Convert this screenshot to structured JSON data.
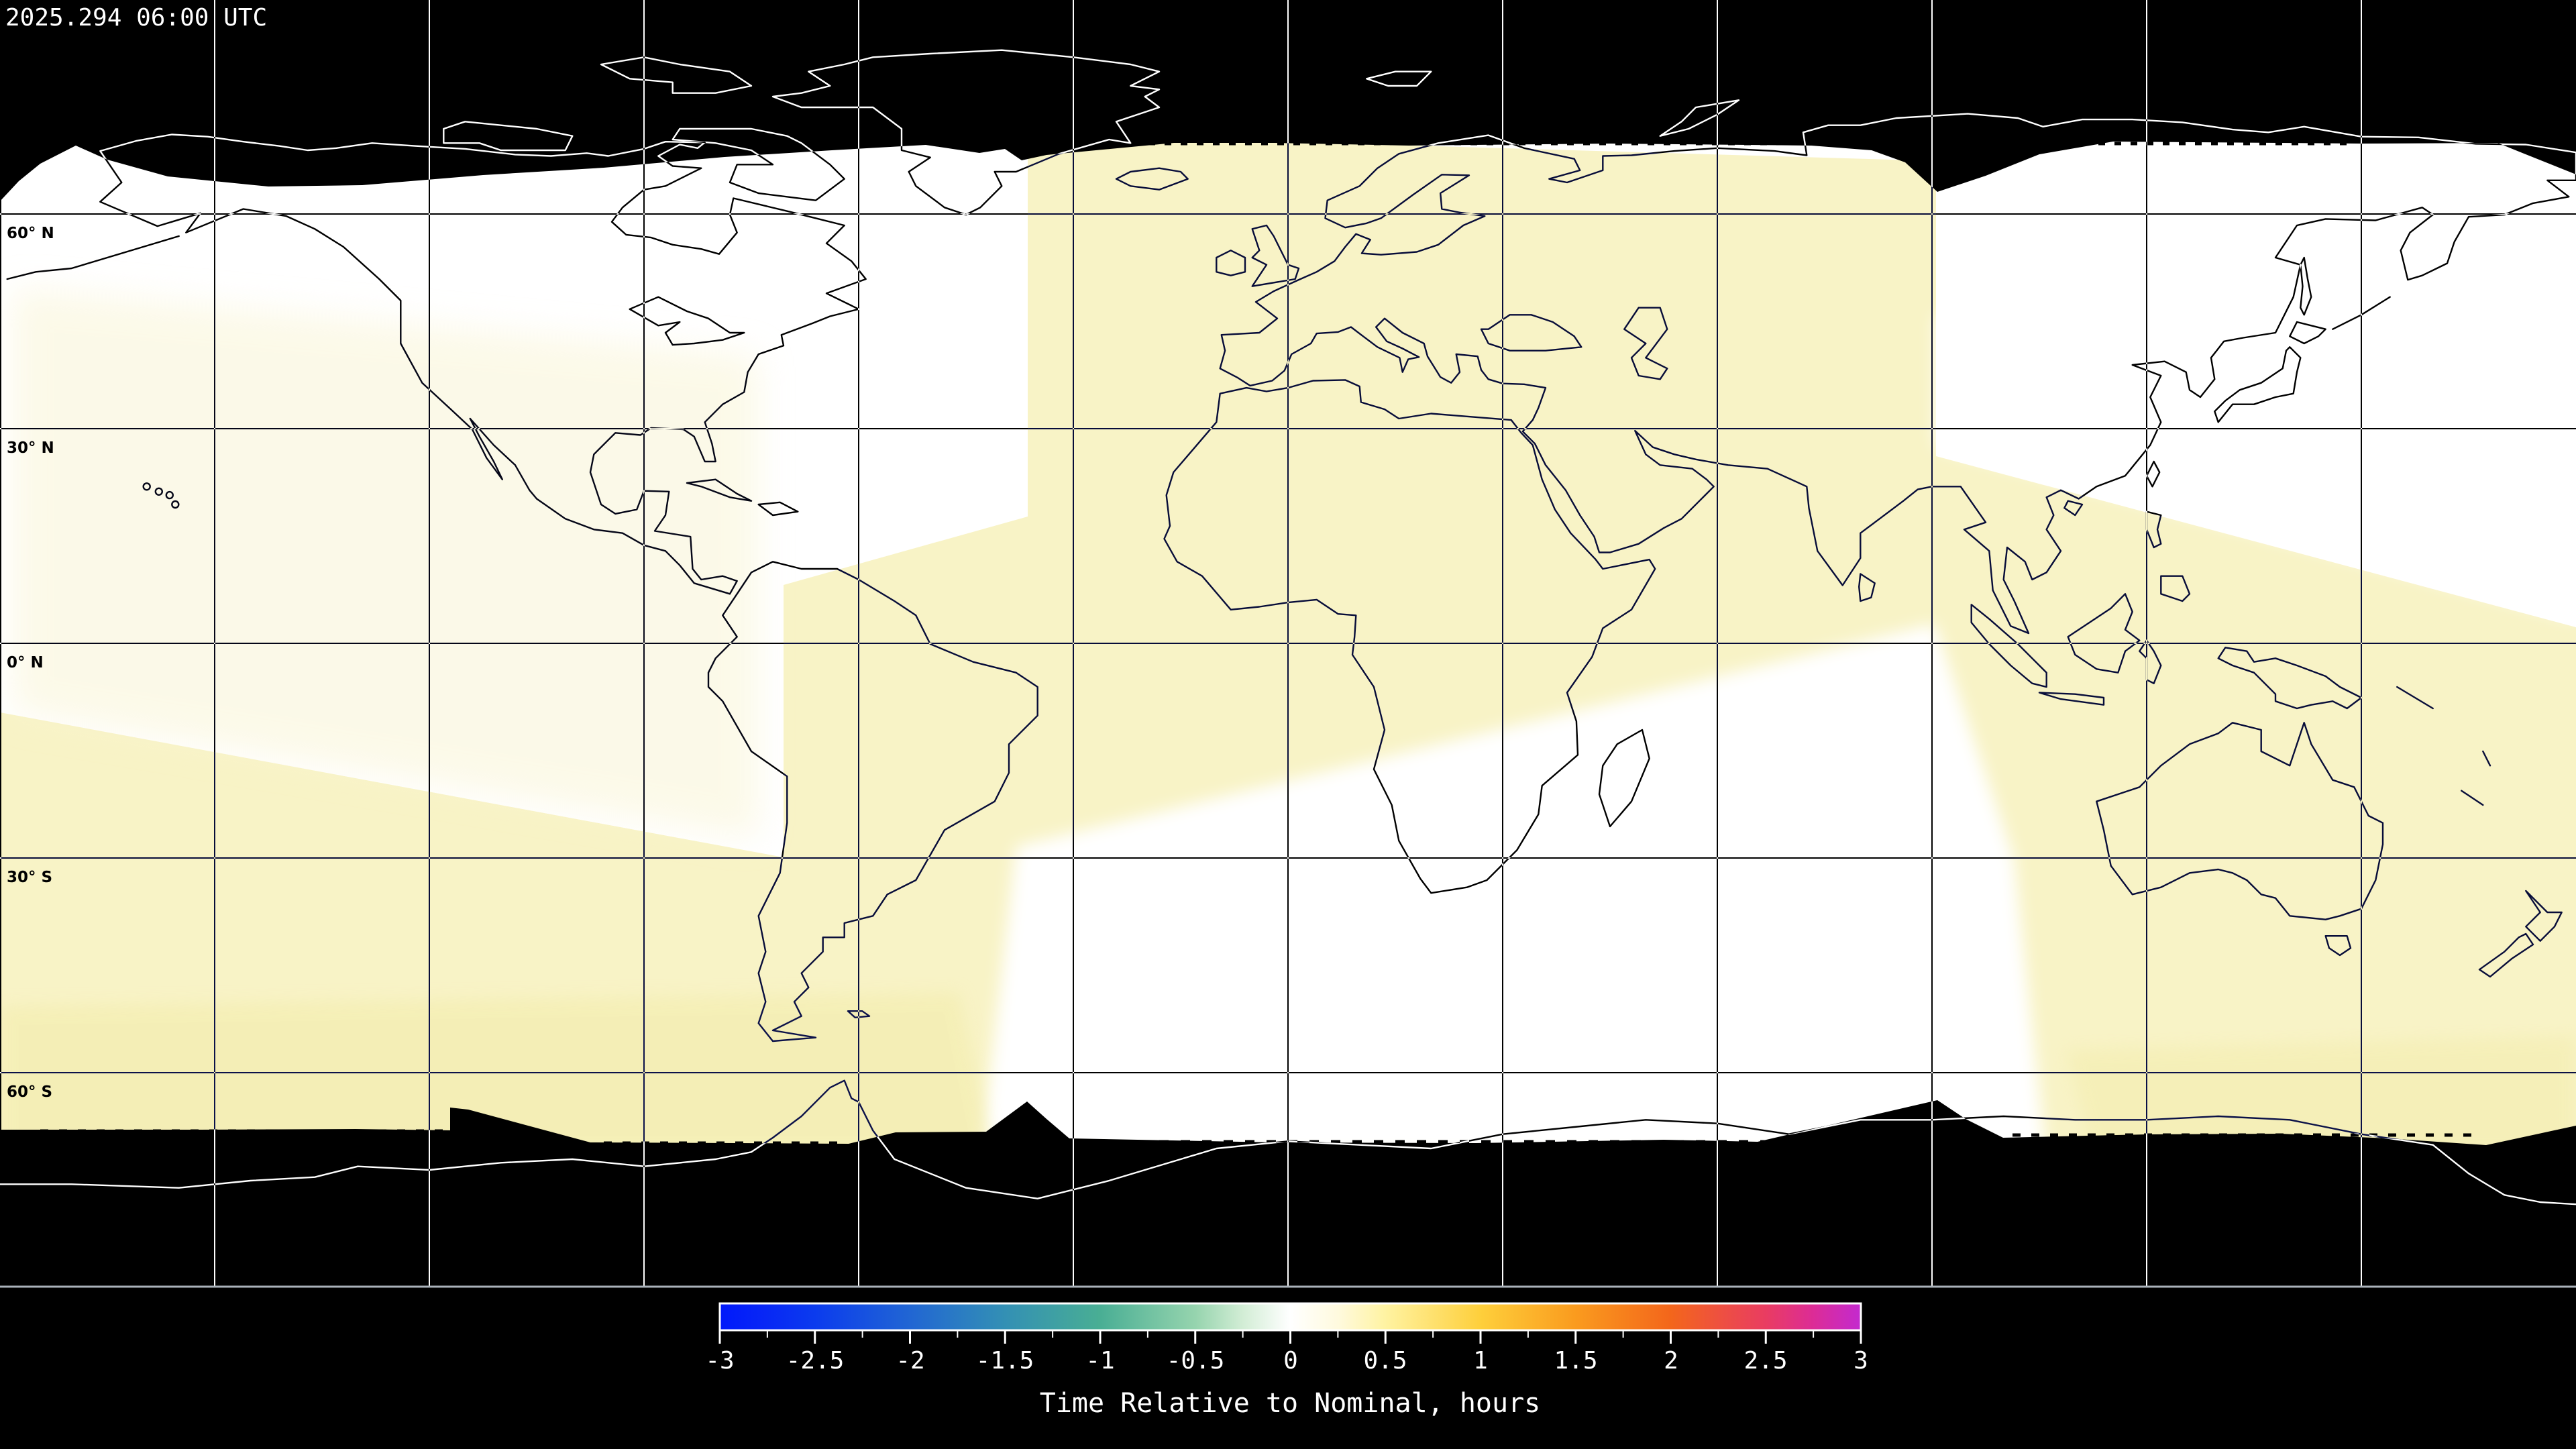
{
  "header": {
    "timestamp": "2025.294 06:00 UTC"
  },
  "map": {
    "lat_labels": [
      "60° N",
      "30° N",
      "0° N",
      "30° S",
      "60° S"
    ]
  },
  "colorbar": {
    "title": "Time Relative to Nominal, hours",
    "ticks": [
      "-3",
      "-2.5",
      "-2",
      "-1.5",
      "-1",
      "-0.5",
      "0",
      "0.5",
      "1",
      "1.5",
      "2",
      "2.5",
      "3"
    ]
  },
  "chart_data": {
    "type": "heatmap",
    "subtype": "global-satellite-overpass-time-map",
    "projection": "equirectangular",
    "title": "Time Relative to Nominal, hours",
    "timestamp_label": "2025.294 06:00 UTC",
    "colorbar": {
      "range": [
        -3,
        3
      ],
      "major_tick_step": 0.5,
      "minor_tick_step": 0.25,
      "tick_labels": [
        -3,
        -2.5,
        -2,
        -1.5,
        -1,
        -0.5,
        0,
        0.5,
        1,
        1.5,
        2,
        2.5,
        3
      ],
      "gradient_stops": [
        {
          "value": -3.0,
          "color": "#0019FB"
        },
        {
          "value": -2.5,
          "color": "#0B3BEE"
        },
        {
          "value": -2.0,
          "color": "#2166D3"
        },
        {
          "value": -1.5,
          "color": "#3390B4"
        },
        {
          "value": -1.0,
          "color": "#49AE94"
        },
        {
          "value": -0.5,
          "color": "#96D4AE"
        },
        {
          "value": 0.0,
          "color": "#FFFFFF"
        },
        {
          "value": 0.5,
          "color": "#FFF3A2"
        },
        {
          "value": 1.0,
          "color": "#FECF3B"
        },
        {
          "value": 1.5,
          "color": "#FA9B1E"
        },
        {
          "value": 2.0,
          "color": "#F3661B"
        },
        {
          "value": 2.5,
          "color": "#E93C62"
        },
        {
          "value": 3.0,
          "color": "#C32ACF"
        }
      ]
    },
    "graticule": {
      "lat_lines_deg": [
        60,
        30,
        0,
        -30,
        -60
      ],
      "lon_step_deg": 30,
      "lat_tick_labels": [
        "60° N",
        "30° N",
        "0° N",
        "30° S",
        "60° S"
      ],
      "grid_on": true
    },
    "data_extent": {
      "north_cutoff_lat_deg": 70,
      "south_cutoff_lat_deg": -70,
      "no_data_color": "#000000"
    },
    "swath_regions": [
      {
        "area": "Americas / central Pacific swath",
        "value_hours": 0.0,
        "color": "#FFFFFF"
      },
      {
        "area": "Europe / Africa swath",
        "value_hours": 0.3,
        "color": "#F8F3C6"
      },
      {
        "area": "Northwest Pacific / Japan swath",
        "value_hours": 0.0,
        "color": "#FFFFFF"
      },
      {
        "area": "Australia / Southeast Asia swath",
        "value_hours": 0.3,
        "color": "#F8F3C6"
      },
      {
        "area": "South Atlantic swath",
        "value_hours": 0.0,
        "color": "#FFFFFF"
      },
      {
        "area": "Southern-ocean band below 45S (west half)",
        "value_hours": 0.4,
        "color": "#F2EBA8"
      }
    ],
    "legend_position": "bottom-center"
  },
  "colors": {
    "background": "#000000",
    "nominal_white": "#ffffff",
    "swath_yellow": "#f8f3c6",
    "map_frame": "#aab2ba",
    "coastline_on_data": "#000000",
    "coastline_on_nodata": "#ffffff"
  }
}
